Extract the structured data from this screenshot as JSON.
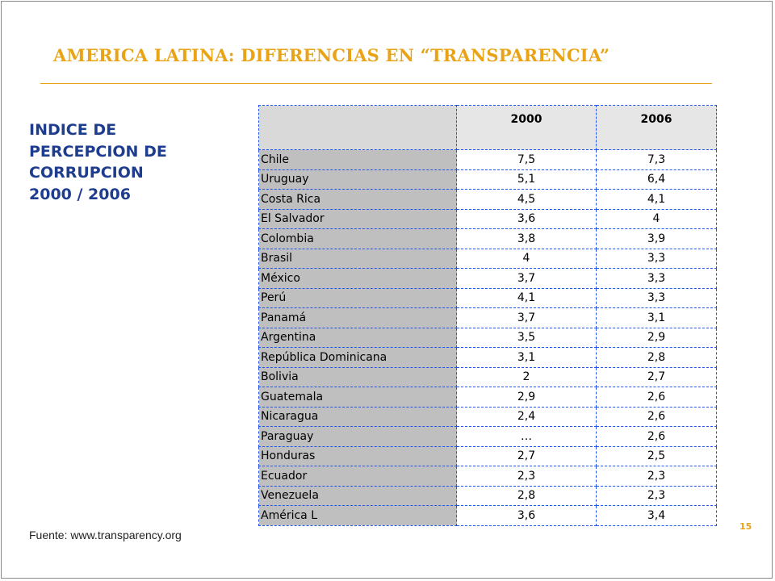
{
  "title": "AMERICA LATINA: DIFERENCIAS EN “TRANSPARENCIA”",
  "subtitle_lines": [
    "INDICE DE",
    "PERCEPCION DE",
    "CORRUPCION",
    "2000 / 2006"
  ],
  "source": "Fuente: www.transparency.org",
  "page_number": "15",
  "colors": {
    "title": "#e8a317",
    "subtitle": "#1f3d8f",
    "table_border": "#2255ee",
    "country_cell": "#bfbfbf"
  },
  "table": {
    "headers": [
      "",
      "2000",
      "2006"
    ],
    "rows": [
      {
        "country": "Chile",
        "y2000": "7,5",
        "y2006": "7,3"
      },
      {
        "country": "Uruguay",
        "y2000": "5,1",
        "y2006": "6,4"
      },
      {
        "country": "Costa Rica",
        "y2000": "4,5",
        "y2006": "4,1"
      },
      {
        "country": "El Salvador",
        "y2000": "3,6",
        "y2006": "4"
      },
      {
        "country": "Colombia",
        "y2000": "3,8",
        "y2006": "3,9"
      },
      {
        "country": "Brasil",
        "y2000": "4",
        "y2006": "3,3"
      },
      {
        "country": "México",
        "y2000": "3,7",
        "y2006": "3,3"
      },
      {
        "country": "Perú",
        "y2000": "4,1",
        "y2006": "3,3"
      },
      {
        "country": "Panamá",
        "y2000": "3,7",
        "y2006": "3,1"
      },
      {
        "country": "Argentina",
        "y2000": "3,5",
        "y2006": "2,9"
      },
      {
        "country": "República Dominicana",
        "y2000": "3,1",
        "y2006": "2,8"
      },
      {
        "country": "Bolivia",
        "y2000": "2",
        "y2006": "2,7"
      },
      {
        "country": "Guatemala",
        "y2000": "2,9",
        "y2006": "2,6"
      },
      {
        "country": "Nicaragua",
        "y2000": "2,4",
        "y2006": "2,6"
      },
      {
        "country": "Paraguay",
        "y2000": "…",
        "y2006": "2,6"
      },
      {
        "country": "Honduras",
        "y2000": "2,7",
        "y2006": "2,5"
      },
      {
        "country": "Ecuador",
        "y2000": "2,3",
        "y2006": "2,3"
      },
      {
        "country": "Venezuela",
        "y2000": "2,8",
        "y2006": "2,3"
      },
      {
        "country": "América L",
        "y2000": "3,6",
        "y2006": "3,4"
      }
    ]
  }
}
